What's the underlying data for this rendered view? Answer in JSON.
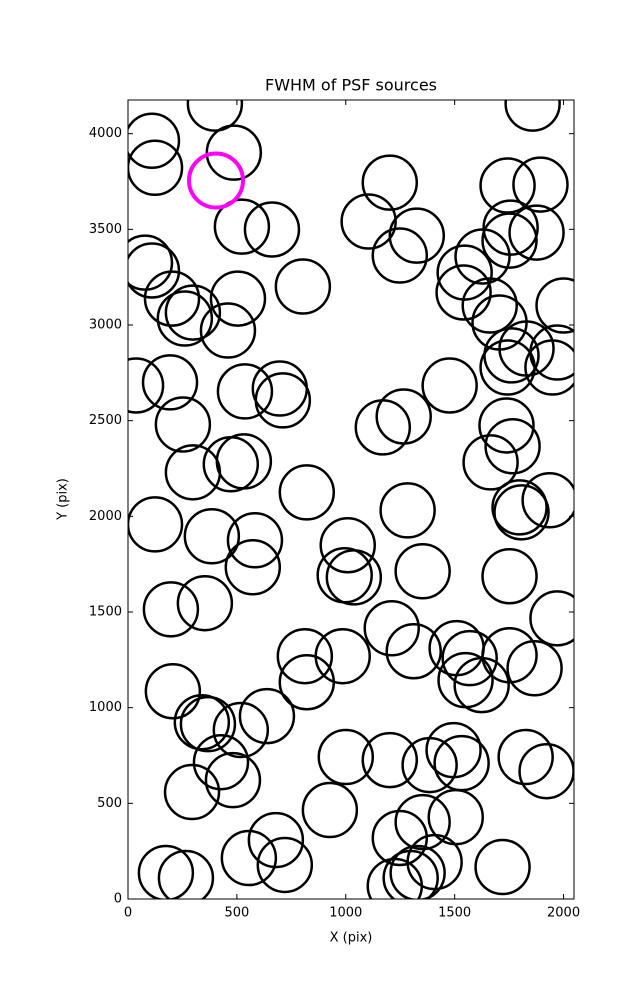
{
  "chart_data": {
    "type": "scatter",
    "title": "FWHM of PSF sources",
    "xlabel": "X (pix)",
    "ylabel": "Y (pix)",
    "xlim": [
      0,
      2048
    ],
    "ylim": [
      0,
      4176
    ],
    "xticks": [
      0,
      500,
      1000,
      1500,
      2000
    ],
    "yticks": [
      0,
      500,
      1000,
      1500,
      2000,
      2500,
      3000,
      3500,
      4000
    ],
    "grid": false,
    "series": [
      {
        "color": "#000000",
        "x": [
          399,
          110,
          124,
          486,
          1858,
          1202,
          1743,
          1894,
          523,
          661,
          1105,
          1326,
          1248,
          1757,
          1752,
          1876,
          78,
          110,
          1628,
          1546,
          803,
          202,
          298,
          261,
          505,
          459,
          1541,
          1661,
          1706,
          2000,
          1830,
          1761,
          1743,
          1972,
          1949,
          37,
          193,
          537,
          697,
          711,
          1477,
          1266,
          1170,
          252,
          1738,
          1766,
          472,
          532,
          298,
          1665,
          821,
          1936,
          1284,
          1798,
          1807,
          124,
          385,
          583,
          573,
          1009,
          995,
          1037,
          1353,
          1752,
          1972,
          353,
          197,
          1211,
          1312,
          1509,
          1569,
          1550,
          1624,
          1752,
          1867,
          812,
          986,
          821,
          206,
          339,
          367,
          638,
          518,
          427,
          482,
          294,
          1000,
          1202,
          1385,
          1495,
          1532,
          1826,
          1922,
          927,
          1248,
          1353,
          1505,
          679,
          555,
          720,
          1408,
          174,
          266,
          1720,
          1225,
          1298,
          1330
        ],
        "values": [
          4157,
          3963,
          3822,
          3901,
          4157,
          3744,
          3729,
          3734,
          3514,
          3499,
          3541,
          3467,
          3363,
          3509,
          3441,
          3483,
          3326,
          3285,
          3358,
          3274,
          3201,
          3138,
          3065,
          3034,
          3138,
          2971,
          3170,
          3102,
          3013,
          3102,
          2877,
          2841,
          2778,
          2856,
          2778,
          2684,
          2700,
          2653,
          2668,
          2606,
          2684,
          2522,
          2465,
          2480,
          2475,
          2366,
          2272,
          2287,
          2230,
          2282,
          2125,
          2084,
          2031,
          2047,
          2021,
          1958,
          1896,
          1875,
          1734,
          1849,
          1692,
          1681,
          1713,
          1687,
          1467,
          1546,
          1514,
          1415,
          1295,
          1311,
          1259,
          1144,
          1118,
          1274,
          1206,
          1269,
          1269,
          1133,
          1086,
          924,
          914,
          956,
          883,
          715,
          621,
          559,
          742,
          726,
          700,
          778,
          710,
          742,
          668,
          465,
          319,
          402,
          428,
          308,
          214,
          178,
          193,
          136,
          110,
          167,
          68,
          110,
          136
        ]
      },
      {
        "color": "#ff00ff",
        "x": [
          404
        ],
        "values": [
          3755
        ]
      }
    ]
  }
}
